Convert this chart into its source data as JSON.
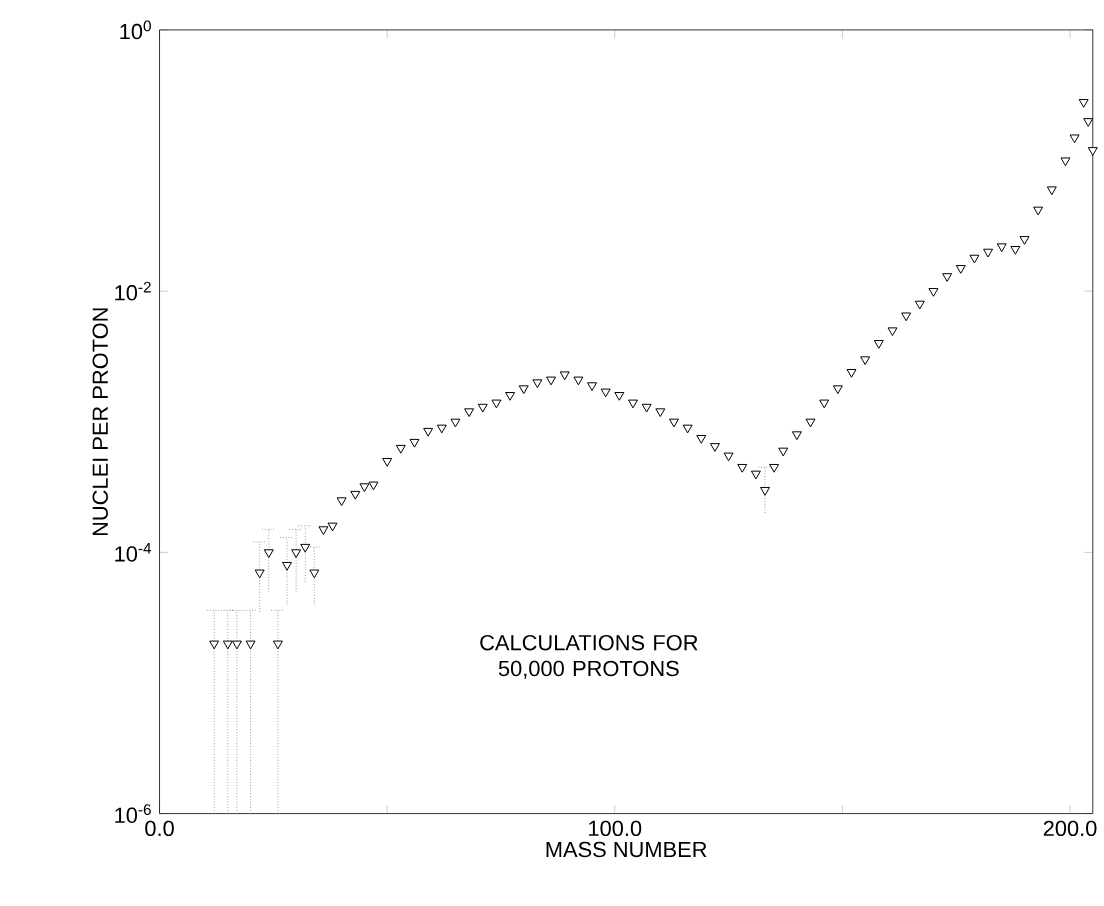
{
  "chart_data": {
    "type": "scatter",
    "xlabel": "MASS NUMBER",
    "ylabel": "NUCLEI PER PROTON",
    "annotations": [
      "CALCULATIONS FOR 50,000 PROTONS"
    ],
    "log": "y",
    "marker": "triangle",
    "grid": false,
    "xlim": [
      0,
      205
    ],
    "ylim": [
      1e-06,
      1
    ],
    "xticks": [
      {
        "value": 0,
        "label": "0.0"
      },
      {
        "value": 50,
        "label": null
      },
      {
        "value": 100,
        "label": "100.0"
      },
      {
        "value": 150,
        "label": null
      },
      {
        "value": 200,
        "label": "200.0"
      }
    ],
    "yticks": [
      {
        "value": 1e-06,
        "label": "10$^{-6}$"
      },
      {
        "value": 0.0001,
        "label": "10$^{-4}$"
      },
      {
        "value": 0.01,
        "label": "10$^{-2}$"
      },
      {
        "value": 1,
        "label": "10$^{0}$"
      }
    ],
    "series": [
      {
        "color": "#000000",
        "x": [
          12,
          15,
          17,
          20,
          22,
          24,
          26,
          28,
          30,
          32,
          34,
          36,
          38,
          40,
          43,
          45,
          47,
          50,
          53,
          56,
          59,
          62,
          65,
          68,
          71,
          74,
          77,
          80,
          83,
          86,
          89,
          92,
          95,
          98,
          101,
          104,
          107,
          110,
          113,
          116,
          119,
          122,
          125,
          128,
          131,
          133,
          135,
          137,
          140,
          143,
          146,
          149,
          152,
          155,
          158,
          161,
          164,
          167,
          170,
          173,
          176,
          179,
          182,
          185,
          188,
          190,
          193,
          196,
          199,
          201,
          203,
          204,
          205
        ],
        "values": [
          2e-05,
          2e-05,
          2e-05,
          2e-05,
          7e-05,
          0.0001,
          2e-05,
          8e-05,
          0.0001,
          0.00011,
          7e-05,
          0.00015,
          0.00016,
          0.00025,
          0.00028,
          0.00032,
          0.00033,
          0.0005,
          0.00063,
          0.0007,
          0.00085,
          0.0009,
          0.001,
          0.0012,
          0.0013,
          0.0014,
          0.0016,
          0.0018,
          0.002,
          0.0021,
          0.0023,
          0.0021,
          0.0019,
          0.0017,
          0.0016,
          0.0014,
          0.0013,
          0.0012,
          0.001,
          0.0009,
          0.00075,
          0.00065,
          0.00055,
          0.00045,
          0.0004,
          0.0003,
          0.00045,
          0.0006,
          0.0008,
          0.001,
          0.0014,
          0.0018,
          0.0024,
          0.003,
          0.004,
          0.005,
          0.0065,
          0.008,
          0.01,
          0.013,
          0.015,
          0.018,
          0.02,
          0.022,
          0.021,
          0.025,
          0.042,
          0.06,
          0.1,
          0.15,
          0.28,
          0.2,
          0.12
        ],
        "errors": [
          [
            1e-06,
            3.6e-05
          ],
          [
            1e-06,
            3.6e-05
          ],
          [
            1e-06,
            3.6e-05
          ],
          [
            1e-06,
            3.6e-05
          ],
          [
            3.5e-05,
            0.00012
          ],
          [
            5e-05,
            0.00015
          ],
          [
            1e-06,
            3.6e-05
          ],
          [
            4e-05,
            0.00013
          ],
          [
            5e-05,
            0.00015
          ],
          [
            6e-05,
            0.00016
          ],
          [
            4e-05,
            0.00011
          ],
          null,
          null,
          null,
          null,
          null,
          null,
          null,
          null,
          null,
          null,
          null,
          null,
          null,
          null,
          null,
          null,
          null,
          null,
          null,
          null,
          null,
          null,
          null,
          null,
          null,
          null,
          null,
          null,
          null,
          null,
          null,
          null,
          null,
          null,
          [
            0.0002,
            0.00045
          ],
          null,
          null,
          null,
          null,
          null,
          null,
          null,
          null,
          null,
          null,
          null,
          null,
          null,
          null,
          null,
          null,
          null,
          null,
          null,
          null,
          null,
          null,
          null,
          null,
          null,
          null,
          null
        ]
      }
    ]
  }
}
